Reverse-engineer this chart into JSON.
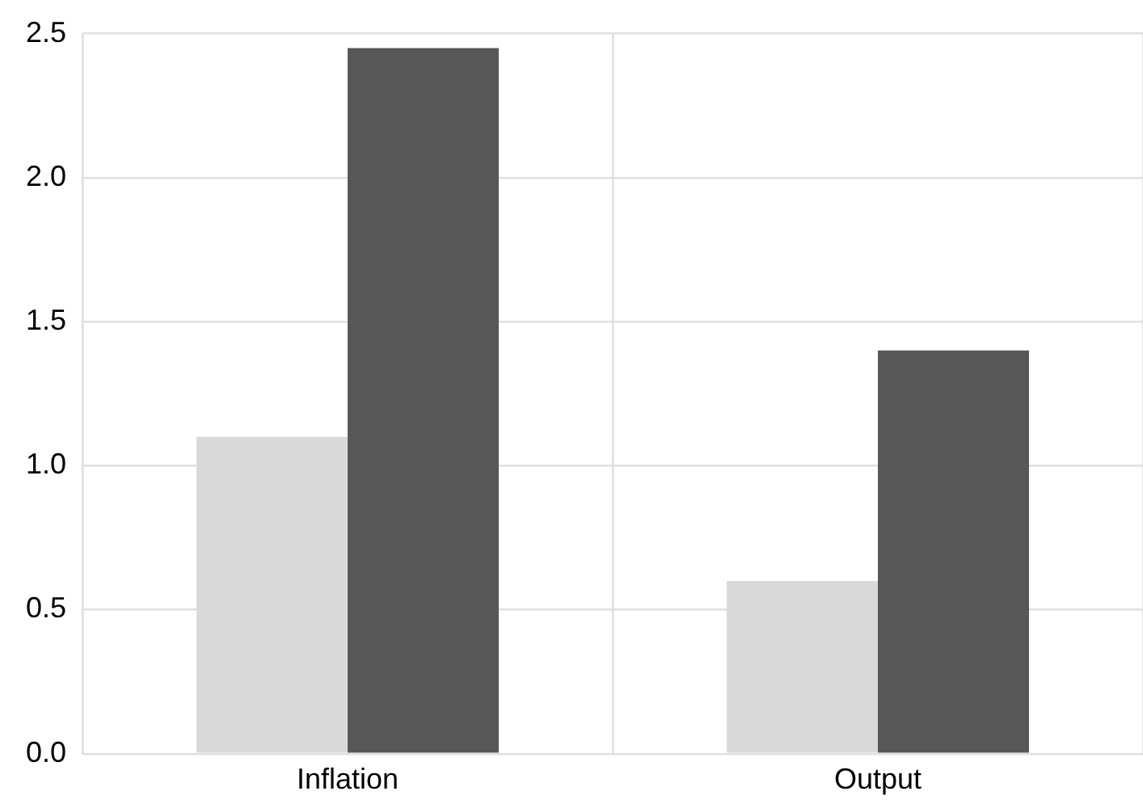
{
  "chart_data": {
    "type": "bar",
    "categories": [
      "Inflation",
      "Output"
    ],
    "series": [
      {
        "color": "#d9d9d9",
        "values": [
          1.1,
          0.6
        ]
      },
      {
        "color": "#575757",
        "values": [
          2.45,
          1.4
        ]
      }
    ],
    "ylim": [
      0,
      2.5
    ],
    "yticks": [
      {
        "value": 0,
        "label": "0.0"
      },
      {
        "value": 0.5,
        "label": "0.5"
      },
      {
        "value": 1,
        "label": "1.0"
      },
      {
        "value": 1.5,
        "label": "1.5"
      },
      {
        "value": 2,
        "label": "2.0"
      },
      {
        "value": 2.5,
        "label": "2.5"
      }
    ],
    "grid": true,
    "legend": false
  }
}
